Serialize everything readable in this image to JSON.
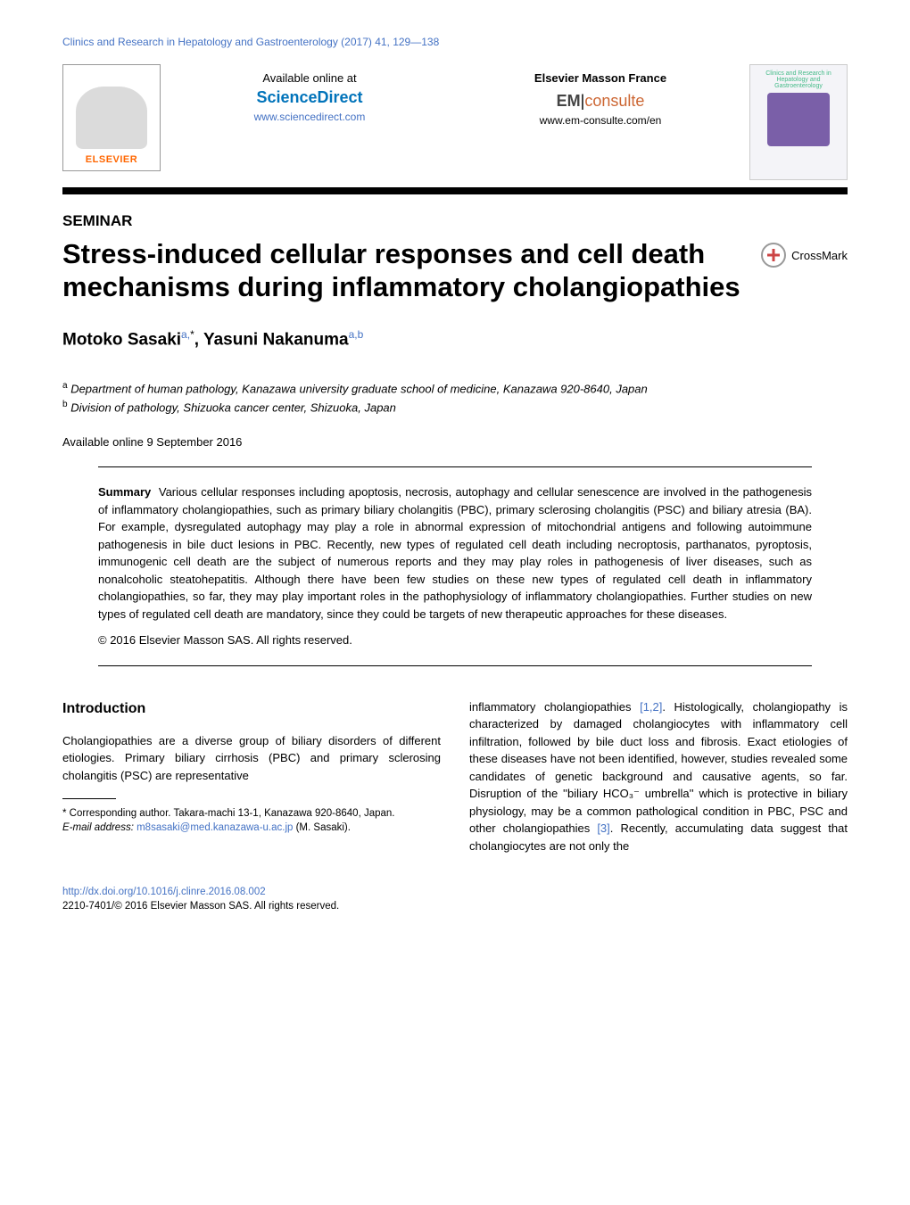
{
  "journal_ref": "Clinics and Research in Hepatology and Gastroenterology (2017) 41, 129—138",
  "header": {
    "elsevier_name": "ELSEVIER",
    "available_label": "Available online at",
    "sciencedirect_logo": "ScienceDirect",
    "sciencedirect_url": "www.sciencedirect.com",
    "emf_label": "Elsevier Masson France",
    "em_part": "EM",
    "consulte_part": "consulte",
    "em_url": "www.em-consulte.com/en",
    "cover_title": "Clinics and Research in Hepatology and Gastroenterology"
  },
  "seminar_label": "SEMINAR",
  "title": "Stress-induced cellular responses and cell death mechanisms during inflammatory cholangiopathies",
  "crossmark_text": "CrossMark",
  "authors_html": {
    "a1_name": "Motoko Sasaki",
    "a1_aff": "a,",
    "a1_star": "*",
    "sep": ", ",
    "a2_name": "Yasuni Nakanuma",
    "a2_aff": "a,b"
  },
  "affiliations": {
    "a": "Department of human pathology, Kanazawa university graduate school of medicine, Kanazawa 920-8640, Japan",
    "b": "Division of pathology, Shizuoka cancer center, Shizuoka, Japan"
  },
  "available_online": "Available online 9 September 2016",
  "summary": {
    "label": "Summary",
    "text": "Various cellular responses including apoptosis, necrosis, autophagy and cellular senescence are involved in the pathogenesis of inflammatory cholangiopathies, such as primary biliary cholangitis (PBC), primary sclerosing cholangitis (PSC) and biliary atresia (BA). For example, dysregulated autophagy may play a role in abnormal expression of mitochondrial antigens and following autoimmune pathogenesis in bile duct lesions in PBC. Recently, new types of regulated cell death including necroptosis, parthanatos, pyroptosis, immunogenic cell death are the subject of numerous reports and they may play roles in pathogenesis of liver diseases, such as nonalcoholic steatohepatitis. Although there have been few studies on these new types of regulated cell death in inflammatory cholangiopathies, so far, they may play important roles in the pathophysiology of inflammatory cholangiopathies. Further studies on new types of regulated cell death are mandatory, since they could be targets of new therapeutic approaches for these diseases.",
    "copyright": "© 2016 Elsevier Masson SAS. All rights reserved."
  },
  "intro": {
    "heading": "Introduction",
    "left_p": "Cholangiopathies are a diverse group of biliary disorders of different etiologies. Primary biliary cirrhosis (PBC) and primary sclerosing cholangitis (PSC) are representative",
    "right_p_before_ref1": "inflammatory cholangiopathies ",
    "ref1": "[1,2]",
    "right_p_mid": ". Histologically, cholangiopathy is characterized by damaged cholangiocytes with inflammatory cell infiltration, followed by bile duct loss and fibrosis. Exact etiologies of these diseases have not been identified, however, studies revealed some candidates of genetic background and causative agents, so far. Disruption of the ''biliary HCO₃⁻ umbrella'' which is protective in biliary physiology, may be a common pathological condition in PBC, PSC and other cholangiopathies ",
    "ref2": "[3]",
    "right_p_after": ". Recently, accumulating data suggest that cholangiocytes are not only the"
  },
  "footnotes": {
    "corr": "* Corresponding author. Takara-machi 13-1, Kanazawa 920-8640, Japan.",
    "email_label": "E-mail address: ",
    "email": "m8sasaki@med.kanazawa-u.ac.jp",
    "email_suffix": " (M. Sasaki)."
  },
  "doi": {
    "url": "http://dx.doi.org/10.1016/j.clinre.2016.08.002",
    "copyright": "2210-7401/© 2016 Elsevier Masson SAS. All rights reserved."
  },
  "colors": {
    "link_blue": "#4472c4",
    "elsevier_orange": "#ff6600",
    "sd_blue": "#0073ba"
  }
}
